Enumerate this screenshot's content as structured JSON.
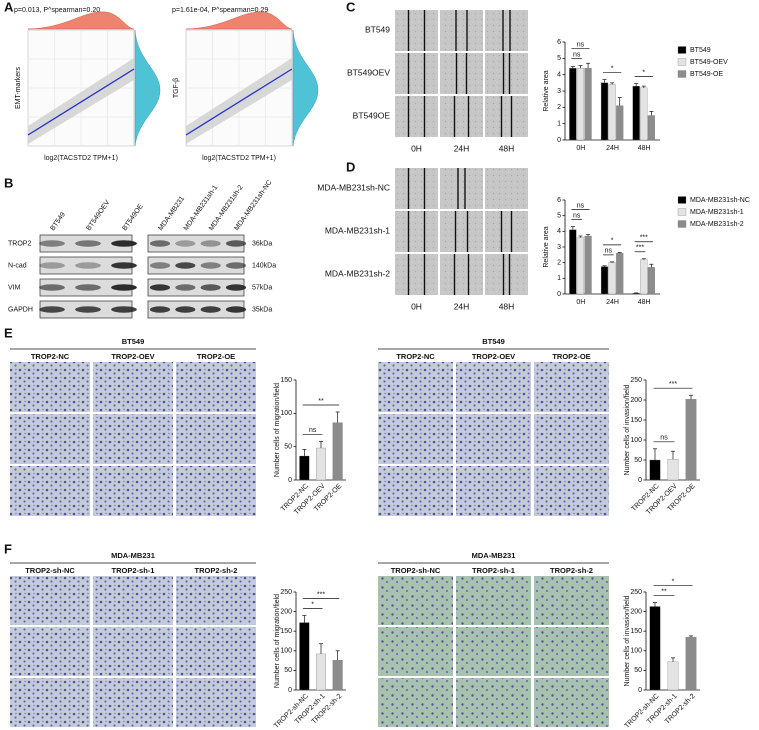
{
  "panel_labels": [
    "A",
    "B",
    "C",
    "D",
    "E",
    "F"
  ],
  "panel_a": [
    {
      "annotation": "p=0.013, P^spearman=0.20",
      "ylabel": "EMT-markers",
      "xlabel": "log2(TACSTD2 TPM+1)"
    },
    {
      "annotation": "p=1.61e-04, P^spearman=0.29",
      "ylabel": "TGF-β",
      "xlabel": "log2(TACSTD2 TPM+1)"
    }
  ],
  "panel_b": {
    "lanes_left": [
      "BT549",
      "BT549OEV",
      "BT549OE"
    ],
    "lanes_right": [
      "MDA-MB231",
      "MDA-MB231sh-1",
      "MDA-MB231sh-2",
      "MDA-MB231sh-NC"
    ],
    "proteins": [
      "TROP2",
      "N-cad",
      "VIM",
      "GAPDH"
    ],
    "sizes": [
      "36kDa",
      "140kDa",
      "57kDa",
      "35kDa"
    ]
  },
  "panel_c": {
    "rows": [
      "BT549",
      "BT549OEV",
      "BT549OE"
    ],
    "times": [
      "0H",
      "24H",
      "48H"
    ]
  },
  "panel_d": {
    "rows": [
      "MDA-MB231sh-NC",
      "MDA-MB231sh-1",
      "MDA-MB231sh-2"
    ],
    "times": [
      "0H",
      "24H",
      "48H"
    ]
  },
  "panel_e": [
    {
      "title": "BT549",
      "columns": [
        "TROP2-NC",
        "TROP2-OEV",
        "TROP2-OE"
      ]
    },
    {
      "title": "BT549",
      "columns": [
        "TROP2-NC",
        "TROP2-OEV",
        "TROP2-OE"
      ]
    }
  ],
  "panel_f": [
    {
      "title": "MDA-MB231",
      "columns": [
        "TROP2-sh-NC",
        "TROP2-sh-1",
        "TROP2-sh-2"
      ]
    },
    {
      "title": "MDA-MB231",
      "columns": [
        "TROP2-sh-NC",
        "TROP2-sh-1",
        "TROP2-sh-2"
      ]
    }
  ],
  "chart_data": [
    {
      "type": "bar",
      "ylabel": "Relative area",
      "categories": [
        "0H",
        "24H",
        "48H"
      ],
      "series": [
        {
          "name": "BT549",
          "color": "#000000",
          "values": [
            4.4,
            3.5,
            3.3
          ],
          "errors": [
            0.1,
            0.2,
            0.15
          ]
        },
        {
          "name": "BT549-OEV",
          "color": "#e3e3e3",
          "values": [
            4.4,
            3.4,
            3.2
          ],
          "errors": [
            0.15,
            0.1,
            0.1
          ]
        },
        {
          "name": "BT549-OE",
          "color": "#8c8c8c",
          "values": [
            4.4,
            2.1,
            1.5
          ],
          "errors": [
            0.3,
            0.5,
            0.25
          ]
        }
      ],
      "comparisons": [
        {
          "category": "0H",
          "pair": [
            "BT549",
            "BT549-OEV"
          ],
          "label": "ns"
        },
        {
          "category": "0H",
          "pair": [
            "BT549",
            "BT549-OE"
          ],
          "label": "ns"
        },
        {
          "category": "24H",
          "pair": [
            "BT549",
            "BT549-OE"
          ],
          "label": "*"
        },
        {
          "category": "48H",
          "pair": [
            "BT549",
            "BT549-OE"
          ],
          "label": "*"
        }
      ],
      "ylim": [
        0,
        6
      ],
      "yticks": [
        0,
        1,
        2,
        3,
        4,
        5,
        6
      ],
      "legend": "right"
    },
    {
      "type": "bar",
      "ylabel": "Relative area",
      "categories": [
        "0H",
        "24H",
        "48H"
      ],
      "series": [
        {
          "name": "MDA-MB231sh-NC",
          "color": "#000000",
          "values": [
            4.1,
            1.75,
            0.05
          ],
          "errors": [
            0.2,
            0.05,
            0.02
          ]
        },
        {
          "name": "MDA-MB231sh-1",
          "color": "#e3e3e3",
          "values": [
            3.6,
            2.0,
            2.2
          ],
          "errors": [
            0.1,
            0.05,
            0.05
          ]
        },
        {
          "name": "MDA-MB231sh-2",
          "color": "#8c8c8c",
          "values": [
            3.7,
            2.6,
            1.7
          ],
          "errors": [
            0.1,
            0.05,
            0.2
          ]
        }
      ],
      "comparisons": [
        {
          "category": "0H",
          "pair": [
            "MDA-MB231sh-NC",
            "MDA-MB231sh-1"
          ],
          "label": "ns"
        },
        {
          "category": "0H",
          "pair": [
            "MDA-MB231sh-NC",
            "MDA-MB231sh-2"
          ],
          "label": "ns"
        },
        {
          "category": "24H",
          "pair": [
            "MDA-MB231sh-NC",
            "MDA-MB231sh-1"
          ],
          "label": "ns"
        },
        {
          "category": "24H",
          "pair": [
            "MDA-MB231sh-NC",
            "MDA-MB231sh-2"
          ],
          "label": "*"
        },
        {
          "category": "48H",
          "pair": [
            "MDA-MB231sh-NC",
            "MDA-MB231sh-1"
          ],
          "label": "***"
        },
        {
          "category": "48H",
          "pair": [
            "MDA-MB231sh-NC",
            "MDA-MB231sh-2"
          ],
          "label": "***"
        }
      ],
      "ylim": [
        0,
        6
      ],
      "yticks": [
        0,
        1,
        2,
        3,
        4,
        5,
        6
      ],
      "legend": "right"
    },
    {
      "type": "bar",
      "ylabel": "Number cells of migration/field",
      "categories": [
        "TROP2-NC",
        "TROP2-OEV",
        "TROP2-OE"
      ],
      "values": [
        36,
        48,
        86
      ],
      "errors": [
        10,
        10,
        16
      ],
      "colors": [
        "#000000",
        "#e3e3e3",
        "#8c8c8c"
      ],
      "comparisons": [
        {
          "pair": [
            "TROP2-NC",
            "TROP2-OEV"
          ],
          "label": "ns"
        },
        {
          "pair": [
            "TROP2-NC",
            "TROP2-OE"
          ],
          "label": "**"
        }
      ],
      "ylim": [
        0,
        150
      ],
      "yticks": [
        0,
        50,
        100,
        150
      ]
    },
    {
      "type": "bar",
      "ylabel": "Number cells of invasion/field",
      "categories": [
        "TROP2-NC",
        "TROP2-OEV",
        "TROP2-OE"
      ],
      "values": [
        50,
        52,
        202
      ],
      "errors": [
        28,
        20,
        10
      ],
      "colors": [
        "#000000",
        "#e3e3e3",
        "#8c8c8c"
      ],
      "comparisons": [
        {
          "pair": [
            "TROP2-NC",
            "TROP2-OEV"
          ],
          "label": "ns"
        },
        {
          "pair": [
            "TROP2-NC",
            "TROP2-OE"
          ],
          "label": "***"
        }
      ],
      "ylim": [
        0,
        250
      ],
      "yticks": [
        0,
        50,
        100,
        150,
        200,
        250
      ]
    },
    {
      "type": "bar",
      "ylabel": "Number cells of migration/field",
      "categories": [
        "TROP2-sh-NC",
        "TROP2-sh-1",
        "TROP2-sh-2"
      ],
      "values": [
        172,
        92,
        76
      ],
      "errors": [
        18,
        26,
        24
      ],
      "colors": [
        "#000000",
        "#e3e3e3",
        "#8c8c8c"
      ],
      "comparisons": [
        {
          "pair": [
            "TROP2-sh-NC",
            "TROP2-sh-1"
          ],
          "label": "*"
        },
        {
          "pair": [
            "TROP2-sh-NC",
            "TROP2-sh-2"
          ],
          "label": "***"
        }
      ],
      "ylim": [
        0,
        250
      ],
      "yticks": [
        0,
        50,
        100,
        150,
        200,
        250
      ]
    },
    {
      "type": "bar",
      "ylabel": "Number cells of invasion/field",
      "categories": [
        "TROP2-sh-NC",
        "TROP2-sh-1",
        "TROP2-sh-2"
      ],
      "values": [
        213,
        72,
        135
      ],
      "errors": [
        10,
        10,
        3
      ],
      "colors": [
        "#000000",
        "#e3e3e3",
        "#8c8c8c"
      ],
      "comparisons": [
        {
          "pair": [
            "TROP2-sh-NC",
            "TROP2-sh-1"
          ],
          "label": "**"
        },
        {
          "pair": [
            "TROP2-sh-NC",
            "TROP2-sh-2"
          ],
          "label": "*"
        }
      ],
      "ylim": [
        0,
        250
      ],
      "yticks": [
        0,
        50,
        100,
        150,
        200,
        250
      ]
    }
  ]
}
